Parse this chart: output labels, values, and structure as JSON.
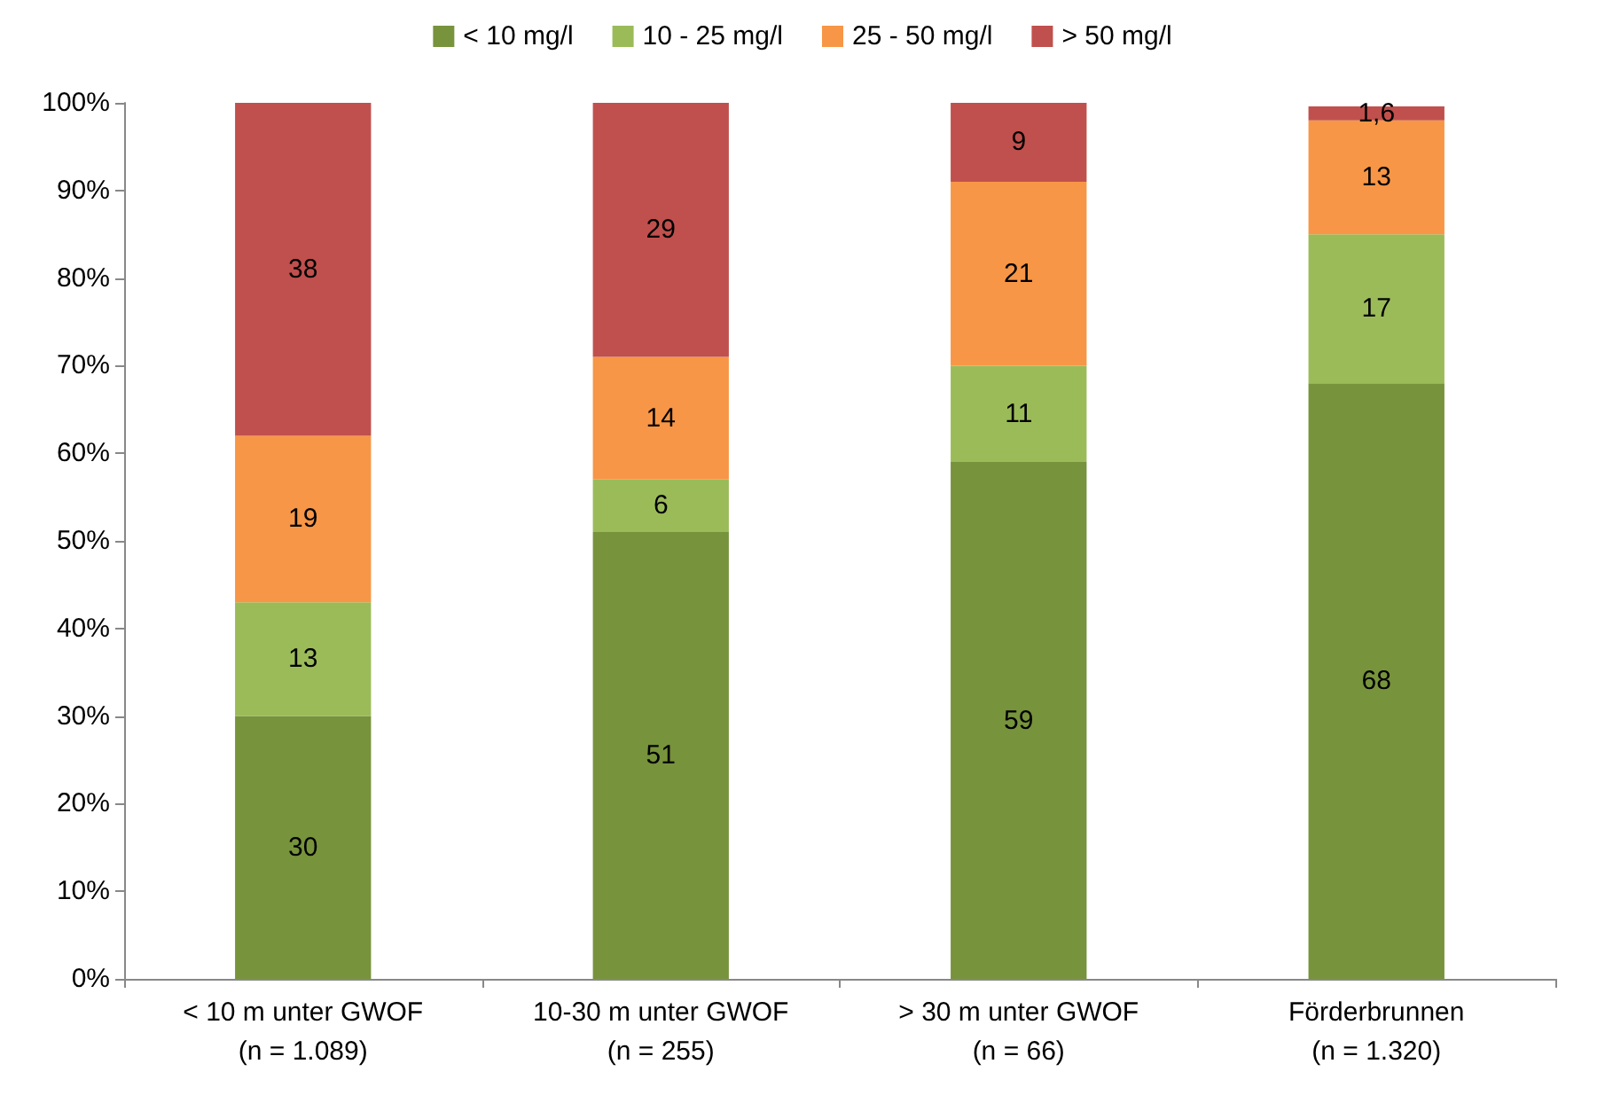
{
  "chart_data": {
    "type": "bar",
    "stacked": true,
    "categories": [
      "< 10 m unter GWOF\n(n = 1.089)",
      "10-30 m unter GWOF\n(n = 255)",
      "> 30 m unter GWOF\n(n = 66)",
      "Förderbrunnen\n(n = 1.320)"
    ],
    "series": [
      {
        "name": "< 10 mg/l",
        "color": "#77933c",
        "values": [
          30,
          51,
          59,
          68
        ],
        "value_labels": [
          "30",
          "51",
          "59",
          "68"
        ]
      },
      {
        "name": "10 - 25 mg/l",
        "color": "#9bbb59",
        "values": [
          13,
          6,
          11,
          17
        ],
        "value_labels": [
          "13",
          "6",
          "11",
          "17"
        ]
      },
      {
        "name": "25 - 50 mg/l",
        "color": "#f79646",
        "values": [
          19,
          14,
          21,
          13
        ],
        "value_labels": [
          "19",
          "14",
          "21",
          "13"
        ]
      },
      {
        "name": "> 50 mg/l",
        "color": "#c0504d",
        "values": [
          38,
          29,
          9,
          1.6
        ],
        "value_labels": [
          "38",
          "29",
          "9",
          "1,6"
        ]
      }
    ],
    "ylim": [
      0,
      100
    ],
    "yticks": [
      {
        "value": 0,
        "label": "0%"
      },
      {
        "value": 10,
        "label": "10%"
      },
      {
        "value": 20,
        "label": "20%"
      },
      {
        "value": 30,
        "label": "30%"
      },
      {
        "value": 40,
        "label": "40%"
      },
      {
        "value": 50,
        "label": "50%"
      },
      {
        "value": 60,
        "label": "60%"
      },
      {
        "value": 70,
        "label": "70%"
      },
      {
        "value": 80,
        "label": "80%"
      },
      {
        "value": 90,
        "label": "90%"
      },
      {
        "value": 100,
        "label": "100%"
      }
    ],
    "grid": false,
    "legend": "top"
  }
}
